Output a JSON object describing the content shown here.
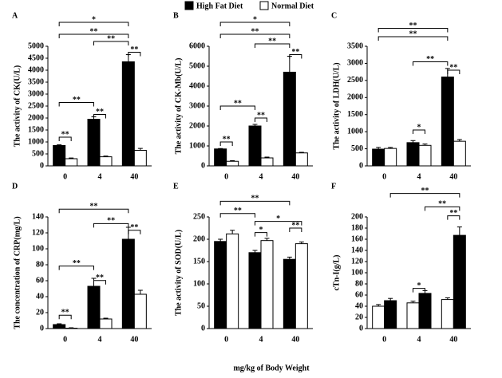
{
  "legend": [
    {
      "name": "High Fat Diet",
      "color": "#000000"
    },
    {
      "name": "Normal Diet",
      "color": "#ffffff"
    }
  ],
  "xlabel": "mg/kg of Body Weight",
  "chart_data": [
    {
      "type": "bar",
      "title": "A",
      "ylabel": "The activity of CK(U/L)",
      "categories": [
        "0",
        "4",
        "40"
      ],
      "series": [
        {
          "color": "#000000",
          "values": [
            850,
            1950,
            4350
          ],
          "errors": [
            30,
            100,
            300
          ]
        },
        {
          "color": "#ffffff",
          "values": [
            300,
            380,
            650
          ],
          "errors": [
            30,
            30,
            80
          ]
        }
      ],
      "ylim": [
        0,
        5000
      ],
      "yticks": [
        0,
        500,
        1000,
        1500,
        2000,
        2500,
        3000,
        3500,
        4000,
        4500,
        5000
      ],
      "annotations": [
        "*",
        "**",
        "**",
        "**",
        "**",
        "**",
        "**"
      ]
    },
    {
      "type": "bar",
      "title": "B",
      "ylabel": "The activity of CK-Mb(U/L)",
      "categories": [
        "0",
        "4",
        "40"
      ],
      "series": [
        {
          "color": "#000000",
          "values": [
            850,
            2000,
            4700
          ],
          "errors": [
            20,
            80,
            800
          ]
        },
        {
          "color": "#ffffff",
          "values": [
            230,
            400,
            650
          ],
          "errors": [
            30,
            40,
            30
          ]
        }
      ],
      "ylim": [
        0,
        6000
      ],
      "yticks": [
        0,
        1000,
        2000,
        3000,
        4000,
        5000,
        6000
      ],
      "annotations": [
        "*",
        "**",
        "**",
        "**",
        "**",
        "**",
        "**"
      ]
    },
    {
      "type": "bar",
      "title": "C",
      "ylabel": "The activity of LDH(U/L)",
      "categories": [
        "0",
        "4",
        "40"
      ],
      "series": [
        {
          "color": "#000000",
          "values": [
            490,
            680,
            2600
          ],
          "errors": [
            50,
            60,
            250
          ]
        },
        {
          "color": "#ffffff",
          "values": [
            510,
            600,
            720
          ],
          "errors": [
            30,
            40,
            50
          ]
        }
      ],
      "ylim": [
        0,
        3500
      ],
      "yticks": [
        0,
        500,
        1000,
        1500,
        2000,
        2500,
        3000,
        3500
      ],
      "annotations": [
        "**",
        "**",
        "**",
        "**",
        "*"
      ]
    },
    {
      "type": "bar",
      "title": "D",
      "ylabel": "The concentration of CRP(mg/L)",
      "categories": [
        "0",
        "4",
        "40"
      ],
      "series": [
        {
          "color": "#000000",
          "values": [
            5,
            53,
            112
          ],
          "errors": [
            1,
            10,
            15
          ]
        },
        {
          "color": "#ffffff",
          "values": [
            0.5,
            12,
            43
          ],
          "errors": [
            0.5,
            1,
            5
          ]
        }
      ],
      "ylim": [
        0,
        140
      ],
      "yticks": [
        0,
        20,
        40,
        60,
        80,
        100,
        120,
        140
      ],
      "annotations": [
        "**",
        "**",
        "**",
        "**",
        "**",
        "**"
      ]
    },
    {
      "type": "bar",
      "title": "E",
      "ylabel": "The activity of SOD(U/L)",
      "categories": [
        "0",
        "4",
        "40"
      ],
      "series": [
        {
          "color": "#000000",
          "values": [
            195,
            170,
            155
          ],
          "errors": [
            5,
            5,
            5
          ]
        },
        {
          "color": "#ffffff",
          "values": [
            212,
            197,
            190
          ],
          "errors": [
            8,
            5,
            4
          ]
        }
      ],
      "ylim": [
        0,
        250
      ],
      "yticks": [
        0,
        50,
        100,
        150,
        200,
        250
      ],
      "annotations": [
        "**",
        "**",
        "*",
        "*",
        "**"
      ]
    },
    {
      "type": "bar",
      "title": "F",
      "ylabel": "cTn-I(g/L)",
      "categories": [
        "0",
        "4",
        "40"
      ],
      "series": [
        {
          "color": "#ffffff",
          "values": [
            40,
            46,
            52
          ],
          "errors": [
            3,
            3,
            3
          ]
        },
        {
          "color": "#000000",
          "values": [
            50,
            63,
            167
          ],
          "errors": [
            4,
            5,
            15
          ]
        }
      ],
      "ylim": [
        0,
        200
      ],
      "yticks": [
        0,
        20,
        40,
        60,
        80,
        100,
        120,
        140,
        160,
        180,
        200
      ],
      "annotations": [
        "**",
        "**",
        "**",
        "*"
      ]
    }
  ]
}
